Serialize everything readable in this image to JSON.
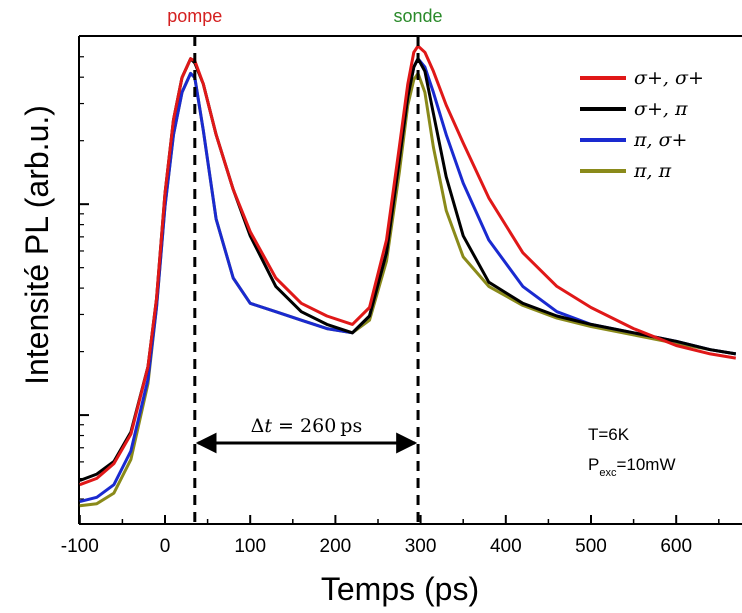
{
  "chart_data": {
    "type": "line",
    "title": "",
    "xlabel": "Temps (ps)",
    "ylabel": "Intensité PL (arb.u.)",
    "xlim": [
      -100,
      670
    ],
    "ylim_log10": [
      0.0,
      2.2
    ],
    "y_scale": "log",
    "y_units": "log10 of arb.u. (ticks unlabeled)",
    "xticks": [
      -100,
      0,
      100,
      200,
      300,
      400,
      500,
      600
    ],
    "xtick_labels": [
      "-100",
      "0",
      "100",
      "200",
      "300",
      "400",
      "500",
      "600"
    ],
    "legend_position": "top-right",
    "grid": false,
    "markers": [
      {
        "label": "pompe",
        "x": 35,
        "color": "#d42020"
      },
      {
        "label": "sonde",
        "x": 297,
        "color": "#2a8a2a"
      }
    ],
    "interval": {
      "label_prefix": "Δt = ",
      "value": "260",
      "unit": "ps",
      "x_from": 35,
      "x_to": 297
    },
    "annotations": {
      "temperature": "T=6K",
      "power_main": "P",
      "power_sub": "exc",
      "power_value": "=10mW"
    },
    "series": [
      {
        "name": "σ+, σ+",
        "color": "#e01818",
        "x": [
          -100,
          -80,
          -60,
          -40,
          -20,
          -10,
          0,
          10,
          20,
          30,
          35,
          45,
          60,
          80,
          100,
          130,
          160,
          190,
          220,
          240,
          260,
          275,
          285,
          292,
          297,
          305,
          315,
          330,
          350,
          380,
          420,
          460,
          500,
          550,
          600,
          640,
          670
        ],
        "y": [
          0.12,
          0.15,
          0.22,
          0.36,
          0.68,
          1.0,
          1.5,
          1.85,
          2.05,
          2.14,
          2.13,
          2.02,
          1.78,
          1.52,
          1.32,
          1.1,
          0.98,
          0.92,
          0.88,
          0.96,
          1.28,
          1.72,
          2.02,
          2.17,
          2.2,
          2.17,
          2.08,
          1.92,
          1.74,
          1.48,
          1.22,
          1.06,
          0.96,
          0.86,
          0.78,
          0.74,
          0.72
        ]
      },
      {
        "name": "σ+, π",
        "color": "#000000",
        "x": [
          -100,
          -80,
          -60,
          -40,
          -20,
          -10,
          0,
          10,
          20,
          30,
          35,
          45,
          60,
          80,
          100,
          130,
          160,
          190,
          220,
          240,
          260,
          275,
          285,
          292,
          297,
          305,
          315,
          330,
          350,
          380,
          420,
          460,
          500,
          550,
          600,
          640,
          670
        ],
        "y": [
          0.14,
          0.17,
          0.23,
          0.37,
          0.68,
          1.0,
          1.5,
          1.85,
          2.05,
          2.14,
          2.12,
          2.02,
          1.78,
          1.52,
          1.3,
          1.06,
          0.94,
          0.88,
          0.84,
          0.92,
          1.22,
          1.66,
          1.96,
          2.1,
          2.14,
          2.08,
          1.88,
          1.58,
          1.3,
          1.08,
          0.98,
          0.92,
          0.88,
          0.84,
          0.8,
          0.76,
          0.74
        ]
      },
      {
        "name": "π, σ+",
        "color": "#1a2ad0",
        "x": [
          -100,
          -80,
          -60,
          -40,
          -20,
          -10,
          0,
          10,
          20,
          30,
          35,
          45,
          60,
          80,
          100,
          130,
          160,
          190,
          220,
          240,
          260,
          275,
          285,
          292,
          297,
          305,
          315,
          330,
          350,
          380,
          420,
          460,
          500,
          550,
          600,
          640,
          670
        ],
        "y": [
          0.04,
          0.06,
          0.12,
          0.28,
          0.62,
          0.96,
          1.44,
          1.78,
          1.98,
          2.07,
          2.05,
          1.8,
          1.38,
          1.1,
          0.98,
          0.94,
          0.9,
          0.86,
          0.84,
          0.92,
          1.22,
          1.66,
          1.96,
          2.1,
          2.14,
          2.1,
          1.98,
          1.78,
          1.55,
          1.28,
          1.06,
          0.94,
          0.88,
          0.84,
          0.8,
          0.76,
          0.74
        ]
      },
      {
        "name": "π, π",
        "color": "#8a8a1a",
        "x": [
          -100,
          -80,
          -60,
          -40,
          -20,
          -10,
          0,
          10,
          20,
          30,
          35,
          45,
          60,
          80,
          100,
          130,
          160,
          190,
          220,
          240,
          260,
          275,
          285,
          292,
          297,
          305,
          315,
          330,
          350,
          380,
          420,
          460,
          500,
          550,
          600,
          640,
          670
        ],
        "y": [
          0.02,
          0.03,
          0.08,
          0.24,
          0.6,
          0.96,
          1.44,
          1.78,
          1.98,
          2.07,
          2.05,
          1.8,
          1.38,
          1.1,
          0.98,
          0.94,
          0.9,
          0.86,
          0.84,
          0.9,
          1.18,
          1.6,
          1.92,
          2.04,
          2.07,
          1.98,
          1.72,
          1.42,
          1.2,
          1.06,
          0.97,
          0.91,
          0.87,
          0.83,
          0.79,
          0.76,
          0.74
        ]
      }
    ]
  }
}
